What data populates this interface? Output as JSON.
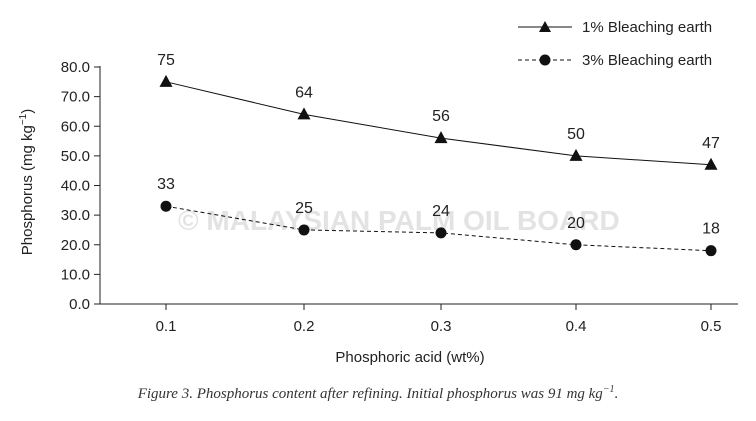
{
  "chart_data": {
    "type": "line",
    "x": [
      0.1,
      0.2,
      0.3,
      0.4,
      0.5
    ],
    "xticks": [
      "0.1",
      "0.2",
      "0.3",
      "0.4",
      "0.5"
    ],
    "yticks": [
      "0.0",
      "10.0",
      "20.0",
      "30.0",
      "40.0",
      "50.0",
      "60.0",
      "70.0",
      "80.0"
    ],
    "ylim": [
      0,
      80
    ],
    "xlabel": "Phosphoric acid (wt%)",
    "ylabel_main": "Phosphorus (mg kg",
    "ylabel_sup": "−1",
    "ylabel_end": ")",
    "grid": false,
    "legend_position": "top-right",
    "series": [
      {
        "name": "1% Bleaching earth",
        "values": [
          75,
          64,
          56,
          50,
          47
        ],
        "labels": [
          "75",
          "64",
          "56",
          "50",
          "47"
        ],
        "marker": "triangle",
        "line": "solid",
        "color": "#111111"
      },
      {
        "name": "3% Bleaching earth",
        "values": [
          33,
          25,
          24,
          20,
          18
        ],
        "labels": [
          "33",
          "25",
          "24",
          "20",
          "18"
        ],
        "marker": "circle",
        "line": "dashed",
        "color": "#111111"
      }
    ]
  },
  "watermark": "© MALAYSIAN PALM OIL BOARD",
  "caption": {
    "main": "Figure 3. Phosphorus content after refining. Initial phosphorus was 91 mg kg",
    "sup": "−1",
    "end": "."
  }
}
